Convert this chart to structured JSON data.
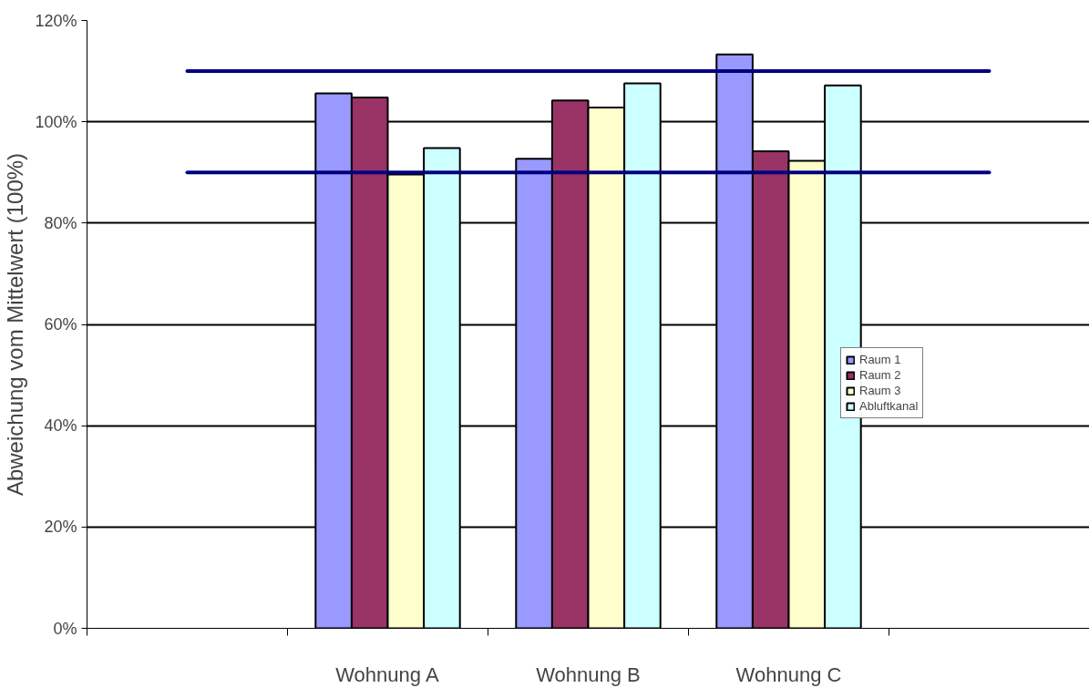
{
  "chart_data": {
    "type": "bar",
    "ylabel": "Abweichung vom Mittelwert (100%)",
    "categories": [
      null,
      "Wohnung A",
      "Wohnung B",
      "Wohnung C",
      null
    ],
    "series": [
      {
        "name": "Raum 1",
        "color": "#9999ff",
        "values": [
          null,
          105.6,
          92.7,
          113.3,
          null
        ]
      },
      {
        "name": "Raum 2",
        "color": "#993366",
        "values": [
          null,
          104.8,
          104.2,
          94.2,
          null
        ]
      },
      {
        "name": "Raum 3",
        "color": "#ffffcc",
        "values": [
          null,
          89.6,
          102.8,
          92.3,
          null
        ]
      },
      {
        "name": "Abluftkanal",
        "color": "#ccffff",
        "values": [
          null,
          94.8,
          107.6,
          107.2,
          null
        ]
      }
    ],
    "ylim": [
      0,
      120
    ],
    "yticks": [
      {
        "value": 0,
        "label": "0%"
      },
      {
        "value": 20,
        "label": "20%"
      },
      {
        "value": 40,
        "label": "40%"
      },
      {
        "value": 60,
        "label": "60%"
      },
      {
        "value": 80,
        "label": "80%"
      },
      {
        "value": 100,
        "label": "100%"
      },
      {
        "value": 120,
        "label": "120%"
      }
    ],
    "ref_lines": [
      {
        "axis": "y",
        "value": 110,
        "color": "#000080"
      },
      {
        "axis": "y",
        "value": 90,
        "color": "#000080"
      }
    ],
    "grid": "y",
    "legend": "right"
  }
}
